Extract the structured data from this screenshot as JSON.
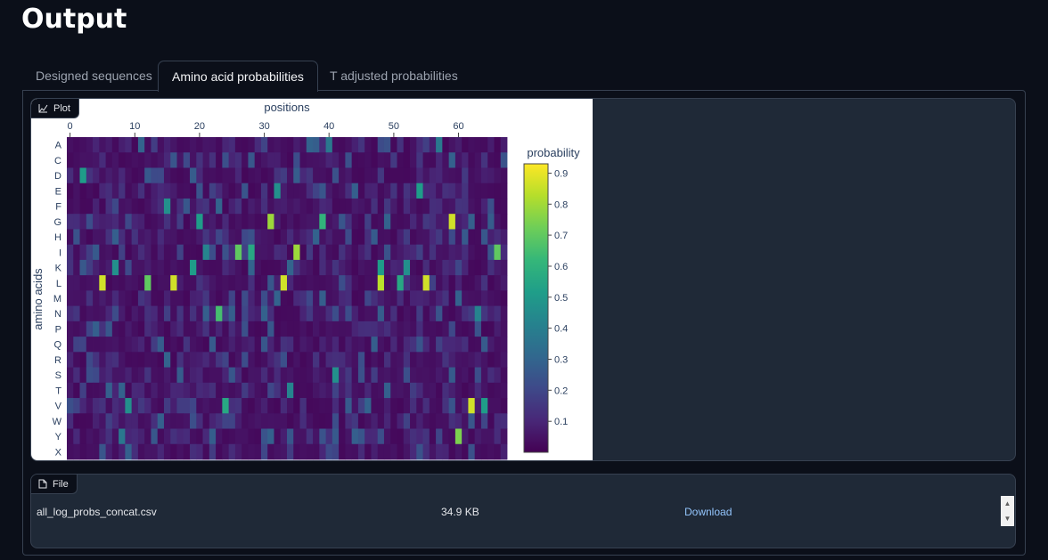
{
  "page": {
    "title": "Output"
  },
  "tabs": [
    {
      "label": "Designed sequences",
      "active": false
    },
    {
      "label": "Amino acid probabilities",
      "active": true
    },
    {
      "label": "T adjusted probabilities",
      "active": false
    }
  ],
  "plot_block": {
    "label": "Plot",
    "icon": "chart-icon"
  },
  "file_block": {
    "label": "File",
    "icon": "file-icon",
    "file_name": "all_log_probs_concat.csv",
    "file_size": "34.9 KB",
    "download_label": "Download"
  },
  "chart_data": {
    "type": "heatmap",
    "xlabel": "positions",
    "ylabel": "amino acids",
    "colorbar_title": "probability",
    "colorscale": "viridis",
    "x_range": [
      0,
      67
    ],
    "x_ticks": [
      0,
      10,
      20,
      30,
      40,
      50,
      60
    ],
    "categories": [
      "A",
      "C",
      "D",
      "E",
      "F",
      "G",
      "H",
      "I",
      "K",
      "L",
      "M",
      "N",
      "P",
      "Q",
      "R",
      "S",
      "T",
      "V",
      "W",
      "Y",
      "X"
    ],
    "colorbar_ticks": [
      0.1,
      0.2,
      0.3,
      0.4,
      0.5,
      0.6,
      0.7,
      0.8,
      0.9
    ],
    "highlights": [
      {
        "aa": "A",
        "position": 40,
        "value": 0.4
      },
      {
        "aa": "A",
        "position": 57,
        "value": 0.4
      },
      {
        "aa": "D",
        "position": 2,
        "value": 0.55
      },
      {
        "aa": "E",
        "position": 32,
        "value": 0.5
      },
      {
        "aa": "E",
        "position": 54,
        "value": 0.55
      },
      {
        "aa": "F",
        "position": 15,
        "value": 0.5
      },
      {
        "aa": "G",
        "position": 20,
        "value": 0.55
      },
      {
        "aa": "G",
        "position": 31,
        "value": 0.85
      },
      {
        "aa": "G",
        "position": 39,
        "value": 0.65
      },
      {
        "aa": "G",
        "position": 59,
        "value": 0.93
      },
      {
        "aa": "I",
        "position": 21,
        "value": 0.45
      },
      {
        "aa": "I",
        "position": 26,
        "value": 0.75
      },
      {
        "aa": "I",
        "position": 28,
        "value": 0.6
      },
      {
        "aa": "I",
        "position": 35,
        "value": 0.85
      },
      {
        "aa": "I",
        "position": 66,
        "value": 0.75
      },
      {
        "aa": "K",
        "position": 7,
        "value": 0.5
      },
      {
        "aa": "K",
        "position": 19,
        "value": 0.55
      },
      {
        "aa": "K",
        "position": 48,
        "value": 0.55
      },
      {
        "aa": "K",
        "position": 52,
        "value": 0.5
      },
      {
        "aa": "L",
        "position": 5,
        "value": 0.93
      },
      {
        "aa": "L",
        "position": 12,
        "value": 0.75
      },
      {
        "aa": "L",
        "position": 16,
        "value": 0.93
      },
      {
        "aa": "L",
        "position": 33,
        "value": 0.93
      },
      {
        "aa": "L",
        "position": 48,
        "value": 0.9
      },
      {
        "aa": "L",
        "position": 51,
        "value": 0.6
      },
      {
        "aa": "L",
        "position": 55,
        "value": 0.93
      },
      {
        "aa": "N",
        "position": 23,
        "value": 0.7
      },
      {
        "aa": "N",
        "position": 63,
        "value": 0.45
      },
      {
        "aa": "S",
        "position": 41,
        "value": 0.5
      },
      {
        "aa": "T",
        "position": 34,
        "value": 0.45
      },
      {
        "aa": "V",
        "position": 9,
        "value": 0.5
      },
      {
        "aa": "V",
        "position": 24,
        "value": 0.6
      },
      {
        "aa": "V",
        "position": 62,
        "value": 0.93
      },
      {
        "aa": "V",
        "position": 64,
        "value": 0.55
      },
      {
        "aa": "Y",
        "position": 8,
        "value": 0.4
      },
      {
        "aa": "Y",
        "position": 60,
        "value": 0.8
      }
    ]
  }
}
